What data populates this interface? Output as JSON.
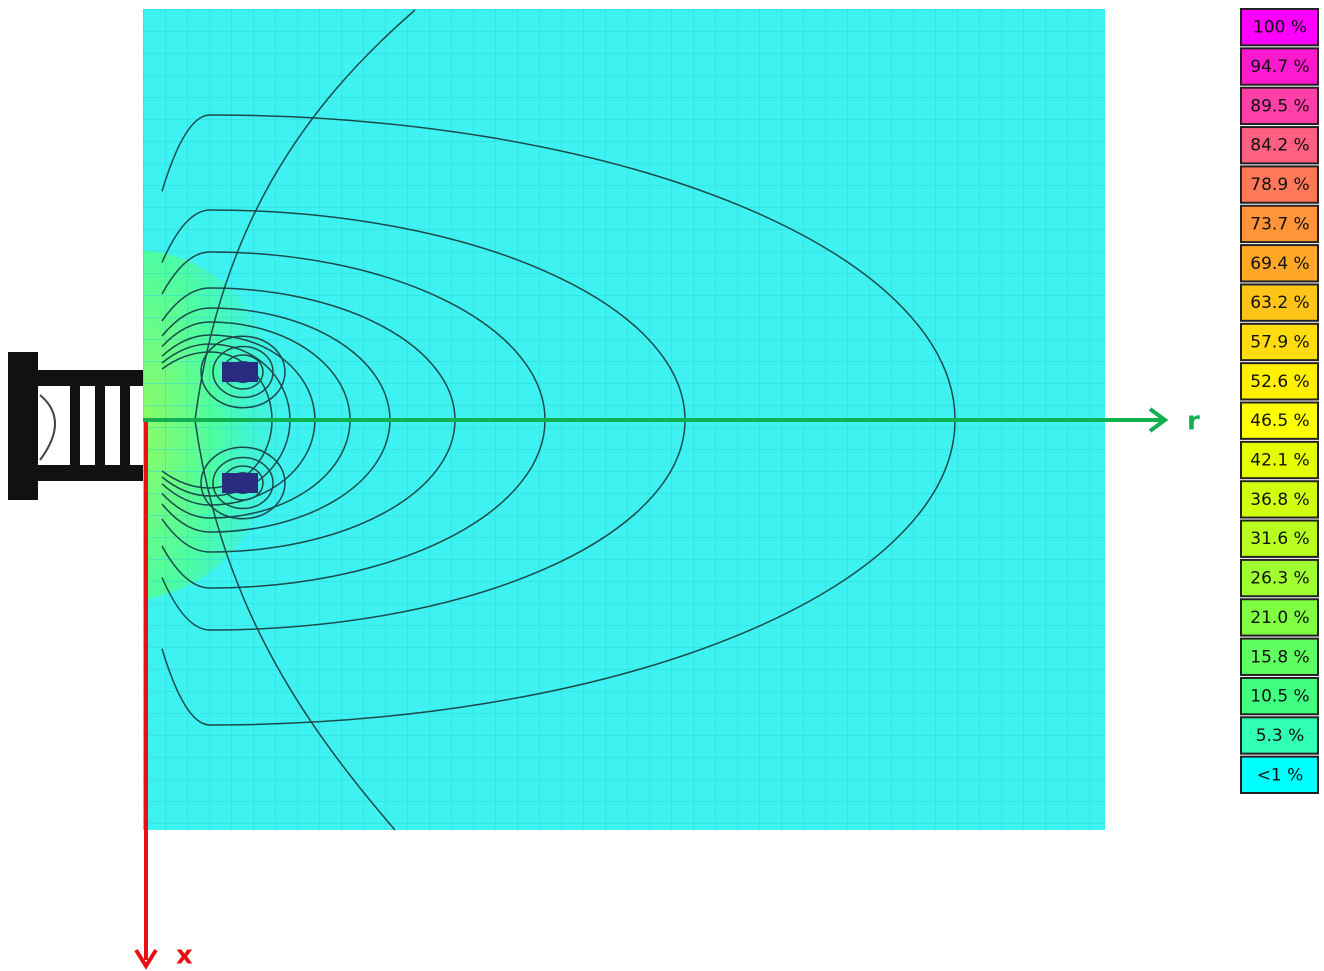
{
  "legend": {
    "items": [
      {
        "label": "100 %",
        "color": "#ff00ff"
      },
      {
        "label": "94.7 %",
        "color": "#ff1ad0"
      },
      {
        "label": "89.5 %",
        "color": "#ff40a8"
      },
      {
        "label": "84.2 %",
        "color": "#ff6080"
      },
      {
        "label": "78.9 %",
        "color": "#ff7858"
      },
      {
        "label": "73.7 %",
        "color": "#ff9438"
      },
      {
        "label": "69.4 %",
        "color": "#ffa828"
      },
      {
        "label": "63.2 %",
        "color": "#ffc418"
      },
      {
        "label": "57.9 %",
        "color": "#ffdc10"
      },
      {
        "label": "52.6 %",
        "color": "#fff000"
      },
      {
        "label": "46.5 %",
        "color": "#ffff00"
      },
      {
        "label": "42.1 %",
        "color": "#e6ff00"
      },
      {
        "label": "36.8 %",
        "color": "#d0ff10"
      },
      {
        "label": "31.6 %",
        "color": "#b8ff20"
      },
      {
        "label": "26.3 %",
        "color": "#a0ff30"
      },
      {
        "label": "21.0 %",
        "color": "#80ff40"
      },
      {
        "label": "15.8 %",
        "color": "#60ff60"
      },
      {
        "label": "10.5 %",
        "color": "#40ff80"
      },
      {
        "label": "5.3 %",
        "color": "#30ffb4"
      },
      {
        "label": "<1 %",
        "color": "#00ffff"
      }
    ]
  },
  "axes": {
    "r": "r",
    "x": "x"
  }
}
